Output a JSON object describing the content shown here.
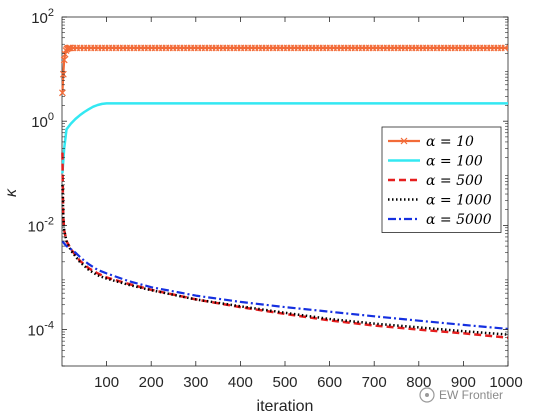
{
  "chart_data": {
    "type": "line",
    "xlabel": "iteration",
    "ylabel": "κ",
    "xlim": [
      0,
      1000
    ],
    "ylim": [
      2e-05,
      100
    ],
    "yscale": "log",
    "xticks": [
      100,
      200,
      300,
      400,
      500,
      600,
      700,
      800,
      900,
      1000
    ],
    "xtick_labels": [
      "100",
      "200",
      "300",
      "400",
      "500",
      "600",
      "700",
      "800",
      "900",
      "1000"
    ],
    "yticks": [
      {
        "value": 100,
        "base": "10",
        "exp": "2"
      },
      {
        "value": 1,
        "base": "10",
        "exp": "0"
      },
      {
        "value": 0.01,
        "base": "10",
        "exp": "-2"
      },
      {
        "value": 0.0001,
        "base": "10",
        "exp": "-4"
      }
    ],
    "grid": false,
    "legend_position": "right",
    "series": [
      {
        "name": "α = 10",
        "legend_label": "α = 10",
        "color": "#F26B38",
        "style": "solid-x-markers",
        "x": [
          1,
          3,
          5,
          8,
          12,
          16,
          20,
          30,
          50,
          100,
          200,
          500,
          1000
        ],
        "y": [
          3.5,
          8,
          15,
          22,
          25,
          25.5,
          25.5,
          25.5,
          25.5,
          25.5,
          25.5,
          25.5,
          25.5
        ]
      },
      {
        "name": "α = 100",
        "legend_label": "α = 100",
        "color": "#33E8F2",
        "style": "solid",
        "x": [
          1,
          5,
          10,
          20,
          30,
          40,
          50,
          60,
          70,
          80,
          90,
          100,
          110,
          200,
          500,
          1000
        ],
        "y": [
          0.1,
          0.3,
          0.7,
          0.9,
          1.1,
          1.3,
          1.5,
          1.7,
          1.9,
          2.05,
          2.15,
          2.2,
          2.2,
          2.2,
          2.2,
          2.2
        ]
      },
      {
        "name": "α = 500",
        "legend_label": "α = 500",
        "color": "#E61E1E",
        "style": "dashed",
        "x": [
          1,
          2,
          3,
          5,
          10,
          20,
          40,
          60,
          80,
          100,
          150,
          200,
          300,
          400,
          500,
          600,
          700,
          800,
          900,
          1000
        ],
        "y": [
          0.25,
          0.04,
          0.015,
          0.008,
          0.005,
          0.0035,
          0.0021,
          0.0015,
          0.0012,
          0.001,
          0.00075,
          0.00058,
          0.00038,
          0.00027,
          0.0002,
          0.00015,
          0.00012,
          0.0001,
          8.5e-05,
          7e-05
        ]
      },
      {
        "name": "α = 1000",
        "legend_label": "α = 1000",
        "color": "#000000",
        "style": "dotted",
        "x": [
          1,
          2,
          3,
          5,
          10,
          20,
          40,
          60,
          80,
          100,
          150,
          200,
          300,
          400,
          500,
          600,
          700,
          800,
          900,
          1000
        ],
        "y": [
          0.06,
          0.03,
          0.015,
          0.008,
          0.005,
          0.0033,
          0.002,
          0.0014,
          0.0011,
          0.00095,
          0.00072,
          0.00057,
          0.00038,
          0.00028,
          0.00021,
          0.00016,
          0.00013,
          0.00011,
          9.3e-05,
          8e-05
        ]
      },
      {
        "name": "α = 5000",
        "legend_label": "α = 5000",
        "color": "#1530E0",
        "style": "dashdot",
        "x": [
          1,
          5,
          10,
          20,
          30,
          40,
          50,
          60,
          80,
          100,
          150,
          200,
          300,
          400,
          500,
          600,
          700,
          800,
          900,
          1000
        ],
        "y": [
          0.005,
          0.0045,
          0.004,
          0.0035,
          0.003,
          0.0025,
          0.0021,
          0.0018,
          0.0014,
          0.0012,
          0.00085,
          0.00065,
          0.00045,
          0.00034,
          0.00027,
          0.00022,
          0.00018,
          0.000148,
          0.000123,
          0.000103
        ]
      }
    ]
  },
  "watermark": {
    "text": "EW Frontier"
  }
}
